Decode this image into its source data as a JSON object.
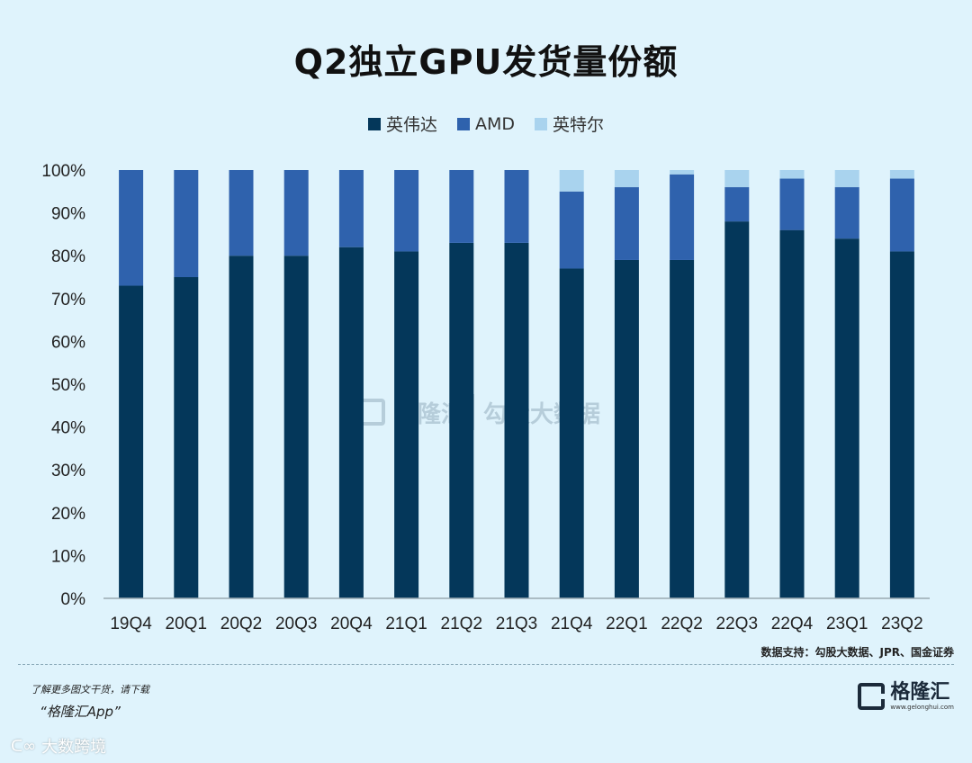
{
  "chart_data": {
    "type": "bar",
    "stacked": true,
    "title": "Q2独立GPU发货量份额",
    "categories": [
      "19Q4",
      "20Q1",
      "20Q2",
      "20Q3",
      "20Q4",
      "21Q1",
      "21Q2",
      "21Q3",
      "21Q4",
      "22Q1",
      "22Q2",
      "22Q3",
      "22Q4",
      "23Q1",
      "23Q2"
    ],
    "series": [
      {
        "name": "英伟达",
        "color": "#04375a",
        "values": [
          73,
          75,
          80,
          80,
          82,
          81,
          83,
          83,
          77,
          79,
          79,
          88,
          86,
          84,
          81
        ]
      },
      {
        "name": "AMD",
        "color": "#2f62ad",
        "values": [
          27,
          25,
          20,
          20,
          18,
          19,
          17,
          17,
          18,
          17,
          20,
          8,
          12,
          12,
          17
        ]
      },
      {
        "name": "英特尔",
        "color": "#a9d3ee",
        "values": [
          0,
          0,
          0,
          0,
          0,
          0,
          0,
          0,
          5,
          4,
          1,
          4,
          2,
          4,
          2
        ]
      }
    ],
    "yticks": [
      "0%",
      "10%",
      "20%",
      "30%",
      "40%",
      "50%",
      "60%",
      "70%",
      "80%",
      "90%",
      "100%"
    ],
    "ylim": [
      0,
      100
    ],
    "legend": "top-center"
  },
  "source": "数据支持：勾股大数据、JPR、国金证券",
  "promo": {
    "line1": "了解更多图文干货，请下载",
    "line2": "“格隆汇App”"
  },
  "footer_brand": "大数跨境",
  "logo": {
    "name": "格隆汇",
    "url": "www.gelonghui.com"
  },
  "watermark": {
    "left": "格隆汇",
    "right": "勾股大数据"
  }
}
